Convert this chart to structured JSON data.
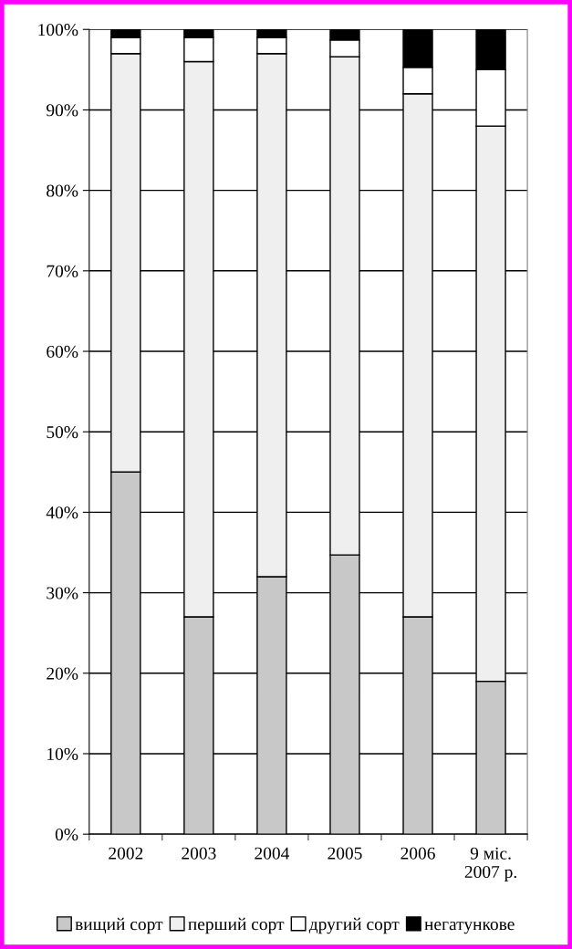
{
  "chart_data": {
    "type": "bar",
    "stacked": true,
    "categories": [
      "2002",
      "2003",
      "2004",
      "2005",
      "2006",
      "9 міс.\n2007 р."
    ],
    "series": [
      {
        "name": "вищий сорт",
        "color": "#c8c8c8",
        "values": [
          45,
          27,
          32,
          34.7,
          27,
          19
        ]
      },
      {
        "name": "перший сорт",
        "color": "#efefef",
        "values": [
          52,
          69,
          65,
          61.9,
          65,
          69
        ]
      },
      {
        "name": "другий сорт",
        "color": "#ffffff",
        "values": [
          2,
          3,
          2,
          2.1,
          3.3,
          7
        ]
      },
      {
        "name": "негатункове",
        "color": "#000000",
        "values": [
          1,
          1,
          1,
          1.3,
          4.7,
          5
        ]
      }
    ],
    "ylim": [
      0,
      100
    ],
    "yticks": [
      {
        "value": 0,
        "label": "0%"
      },
      {
        "value": 10,
        "label": "10%"
      },
      {
        "value": 20,
        "label": "20%"
      },
      {
        "value": 30,
        "label": "30%"
      },
      {
        "value": 40,
        "label": "40%"
      },
      {
        "value": 50,
        "label": "50%"
      },
      {
        "value": 60,
        "label": "60%"
      },
      {
        "value": 70,
        "label": "70%"
      },
      {
        "value": 80,
        "label": "80%"
      },
      {
        "value": 90,
        "label": "90%"
      },
      {
        "value": 100,
        "label": "100%"
      }
    ],
    "grid": "y",
    "legend": "bottom"
  }
}
